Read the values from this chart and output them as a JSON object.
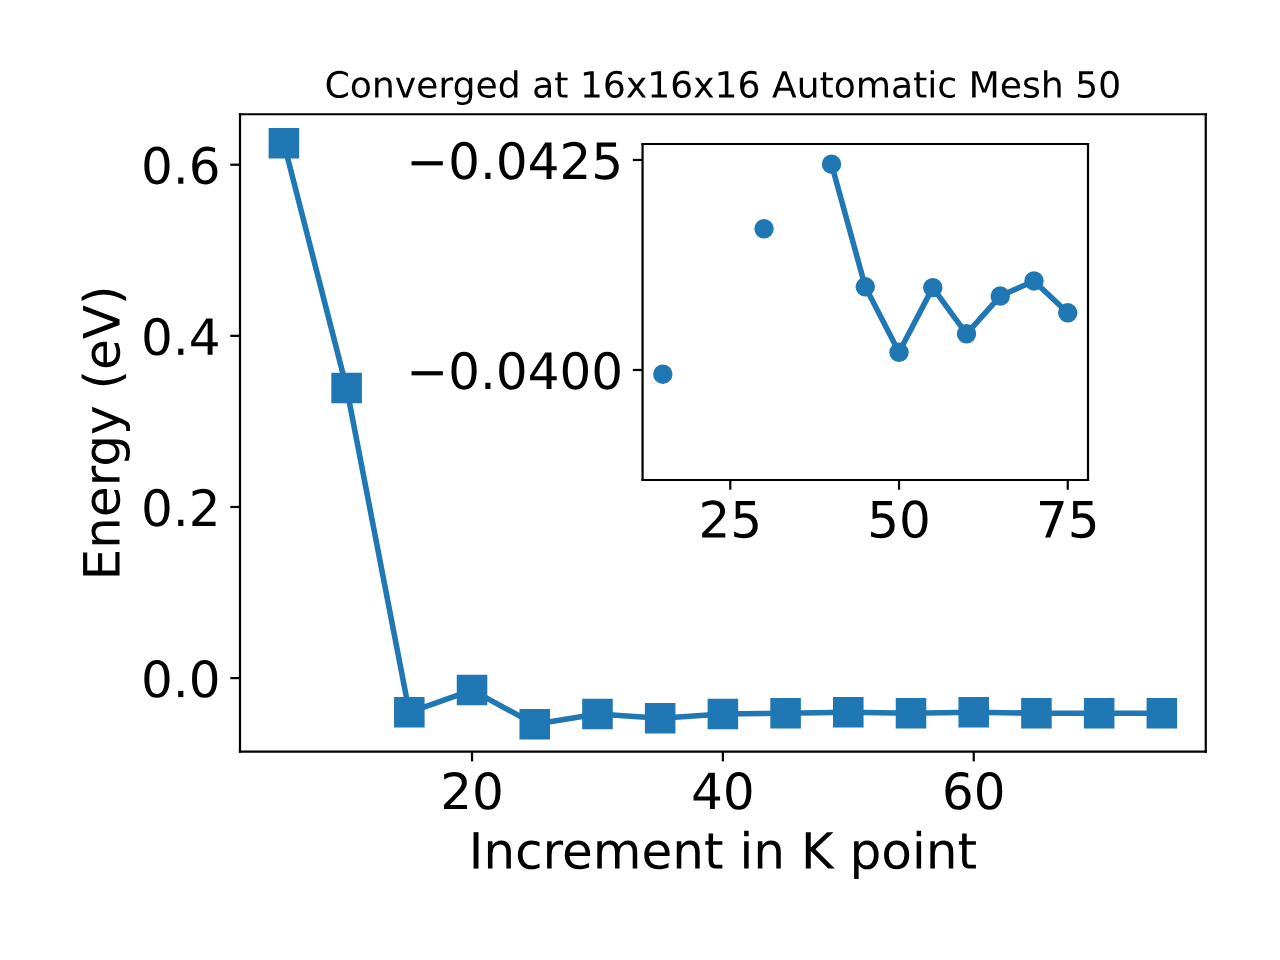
{
  "chart_data": [
    {
      "type": "line",
      "title": "Converged at 16x16x16 Automatic Mesh 50",
      "xlabel": "Increment in K point",
      "ylabel": "Energy (eV)",
      "x": [
        5,
        10,
        15,
        20,
        25,
        30,
        35,
        40,
        45,
        50,
        55,
        60,
        65,
        70,
        75
      ],
      "series": [
        {
          "color": "#1f77b4",
          "values": [
            0.625,
            0.339,
            -0.04,
            -0.014,
            -0.054,
            -0.042,
            -0.047,
            -0.042,
            -0.041,
            -0.04,
            -0.041,
            -0.04,
            -0.041,
            -0.041,
            -0.041
          ]
        }
      ],
      "marker": "square",
      "line_style": "solid",
      "xlim": [
        1.5,
        78.5
      ],
      "ylim": [
        -0.086,
        0.659
      ],
      "xticks": [
        20,
        40,
        60
      ],
      "yticks": [
        {
          "value": 0,
          "label": "0.0"
        },
        {
          "value": 0.2,
          "label": "0.2"
        },
        {
          "value": 0.4,
          "label": "0.4"
        },
        {
          "value": 0.6,
          "label": "0.6"
        }
      ],
      "grid": false,
      "legend": false
    },
    {
      "type": "line",
      "x": [
        15,
        20,
        25,
        30,
        35,
        40,
        45,
        50,
        55,
        60,
        65,
        70,
        75
      ],
      "series": [
        {
          "color": "#1f77b4",
          "values": [
            -0.03995,
            null,
            null,
            -0.04168,
            null,
            -0.04245,
            -0.04099,
            -0.04021,
            -0.04098,
            -0.04043,
            -0.04088,
            -0.04106,
            -0.04068
          ]
        }
      ],
      "marker": "circle",
      "line_style": "solid",
      "xlim": [
        12,
        78
      ],
      "ylim": [
        -0.03869,
        -0.04269
      ],
      "xticks": [
        25,
        50,
        75
      ],
      "yticks": [
        {
          "value": -0.0425,
          "label": "−0.0425"
        },
        {
          "value": -0.04,
          "label": "−0.0400"
        }
      ],
      "grid": false,
      "legend": false
    }
  ]
}
